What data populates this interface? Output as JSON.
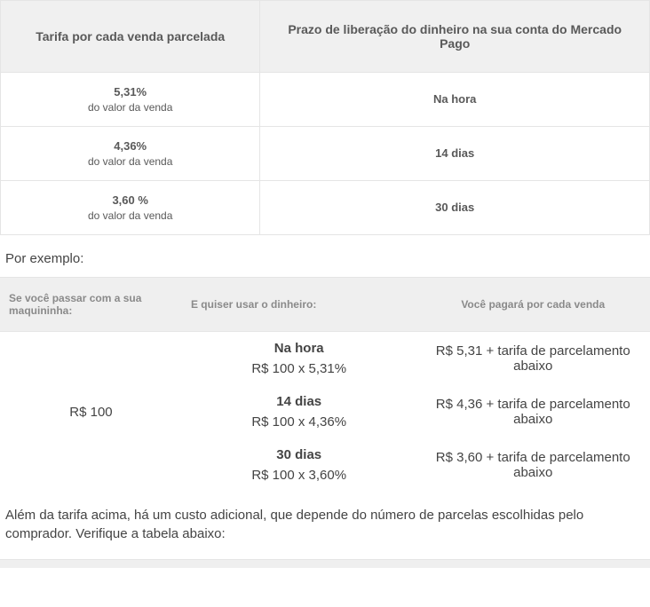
{
  "table1": {
    "headers": {
      "col1": "Tarifa por cada venda parcelada",
      "col2": "Prazo de liberação do dinheiro na sua conta do Mercado Pago"
    },
    "rows": [
      {
        "rate": "5,31%",
        "sub": "do valor da venda",
        "release": "Na hora"
      },
      {
        "rate": "4,36%",
        "sub": "do valor da venda",
        "release": "14 dias"
      },
      {
        "rate": "3,60 %",
        "sub": "do valor da venda",
        "release": "30 dias"
      }
    ]
  },
  "exemplo_label": "Por exemplo:",
  "table2": {
    "headers": {
      "th1": "Se você passar com a sua maquininha:",
      "th2": "E quiser usar o dinheiro:",
      "th3": "Você pagará por cada venda"
    },
    "amount": "R$ 100",
    "rows": [
      {
        "time": "Na hora",
        "calc": "R$ 100 x 5,31%",
        "pay": "R$ 5,31 + tarifa de parcelamento abaixo"
      },
      {
        "time": "14 dias",
        "calc": "R$ 100 x 4,36%",
        "pay": "R$ 4,36 + tarifa de parcelamento abaixo"
      },
      {
        "time": "30 dias",
        "calc": "R$ 100 x 3,60%",
        "pay": "R$ 3,60 + tarifa de parcelamento abaixo"
      }
    ]
  },
  "footer_text": "Além da tarifa acima, há um custo adicional, que depende do número de parcelas escolhidas pelo comprador. Verifique a tabela abaixo:"
}
